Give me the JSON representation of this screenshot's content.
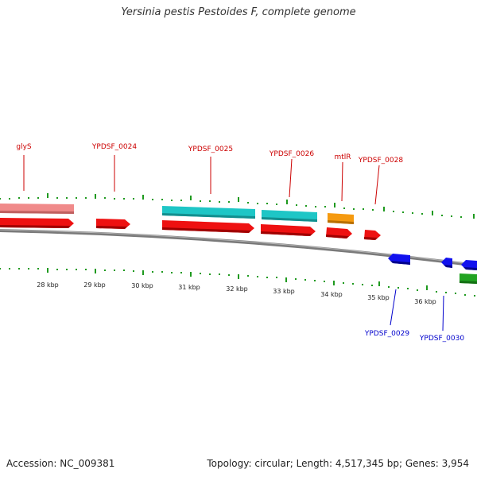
{
  "title": "Yersinia pestis Pestoides F, complete genome",
  "footer": {
    "accession": "Accession: NC_009381",
    "summary": "Topology: circular; Length: 4,517,345 bp; Genes: 3,954"
  },
  "colors": {
    "backbone": "#7a7a7a",
    "tick": "#1f9a1f",
    "cds_forward": "#ee1111",
    "cds_reverse": "#1111ee",
    "trna_forward": "#f08a8a",
    "cyan_feature": "#1ec6c6",
    "orange_feature": "#f59a10",
    "green_feature": "#22a322"
  },
  "axis": {
    "unit": "kbp",
    "tick_labels": [
      "28 kbp",
      "29 kbp",
      "30 kbp",
      "31 kbp",
      "32 kbp",
      "33 kbp",
      "34 kbp",
      "35 kbp",
      "36 kbp"
    ]
  },
  "genes": {
    "forward_labels": [
      "glyS",
      "YPDSF_0024",
      "YPDSF_0025",
      "YPDSF_0026",
      "mtlR",
      "YPDSF_0028"
    ],
    "reverse_labels": [
      "YPDSF_0029",
      "YPDSF_0030"
    ]
  }
}
